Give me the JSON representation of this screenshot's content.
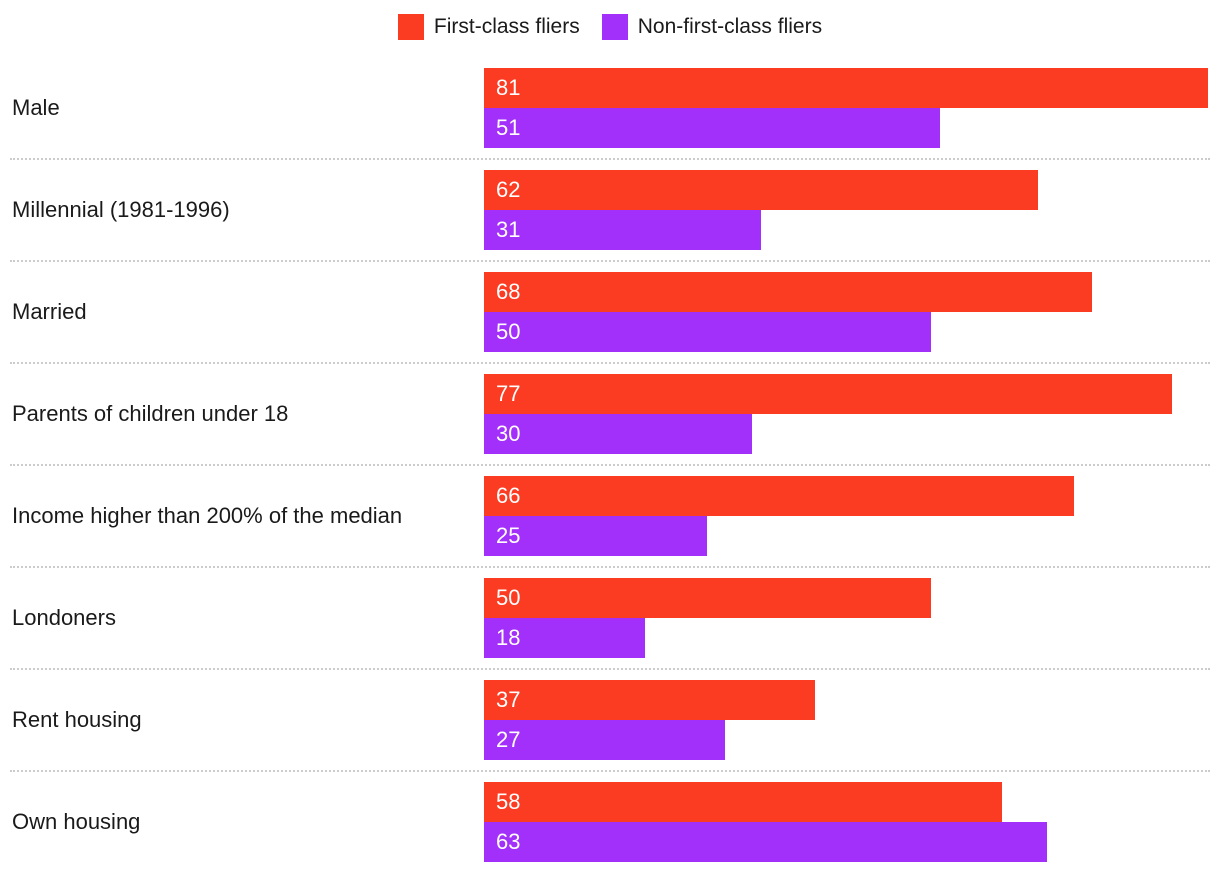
{
  "chart_data": {
    "type": "bar",
    "orientation": "horizontal",
    "title": "",
    "categories": [
      "Male",
      "Millennial (1981-1996)",
      "Married",
      "Parents of children under 18",
      "Income higher than 200% of the median",
      "Londoners",
      "Rent housing",
      "Own housing"
    ],
    "series": [
      {
        "name": "First-class fliers",
        "color": "#fc3c22",
        "values": [
          81,
          62,
          68,
          77,
          66,
          50,
          37,
          58
        ]
      },
      {
        "name": "Non-first-class fliers",
        "color": "#a22ffa",
        "values": [
          51,
          31,
          50,
          30,
          25,
          18,
          27,
          63
        ]
      }
    ],
    "xlim": [
      0,
      81
    ],
    "value_labels": "inside-start",
    "legend_position": "top-center",
    "grid": false
  },
  "colors": {
    "background": "#ffffff",
    "category_text": "#1a1a1a",
    "value_text": "#ffffff",
    "divider": "#cccccc"
  }
}
